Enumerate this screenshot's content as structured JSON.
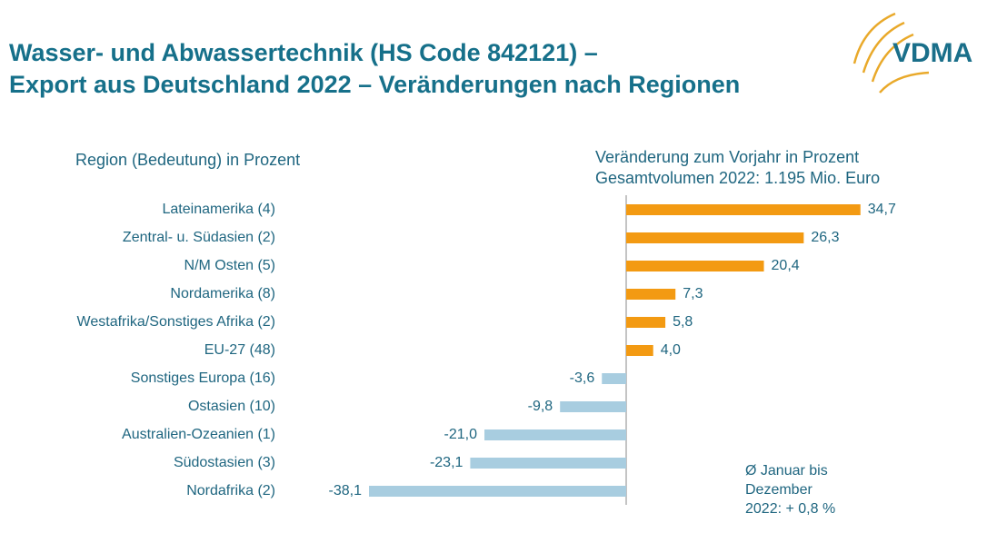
{
  "logo": "VDMA",
  "chart_data": {
    "type": "hbar",
    "title_lines": [
      "Wasser- und Abwassertechnik (HS Code 842121) –",
      "Export aus Deutschland 2022 – Veränderungen nach Regionen"
    ],
    "category_header": "Region (Bedeutung) in Prozent",
    "value_header_lines": [
      "Veränderung zum Vorjahr in Prozent",
      "Gesamtvolumen 2022: 1.195 Mio. Euro"
    ],
    "categories": [
      "Lateinamerika (4)",
      "Zentral- u. Südasien (2)",
      "N/M Osten (5)",
      "Nordamerika (8)",
      "Westafrika/Sonstiges Afrika (2)",
      "EU-27 (48)",
      "Sonstiges Europa (16)",
      "Ostasien (10)",
      "Australien-Ozeanien (1)",
      "Südostasien (3)",
      "Nordafrika (2)"
    ],
    "values": [
      34.7,
      26.3,
      20.4,
      7.3,
      5.8,
      4.0,
      -3.6,
      -9.8,
      -21.0,
      -23.1,
      -38.1
    ],
    "value_labels": [
      "34,7",
      "26,3",
      "20,4",
      "7,3",
      "5,8",
      "4,0",
      "-3,6",
      "-9,8",
      "-21,0",
      "-23,1",
      "-38,1"
    ],
    "colors": [
      "#f39a12",
      "#f39a12",
      "#f39a12",
      "#f39a12",
      "#f39a12",
      "#f39a12",
      "#a8cde0",
      "#a8cde0",
      "#a8cde0",
      "#a8cde0",
      "#a8cde0"
    ],
    "note_lines": [
      "Ø Januar bis",
      "Dezember",
      "2022: + 0,8 %"
    ]
  }
}
